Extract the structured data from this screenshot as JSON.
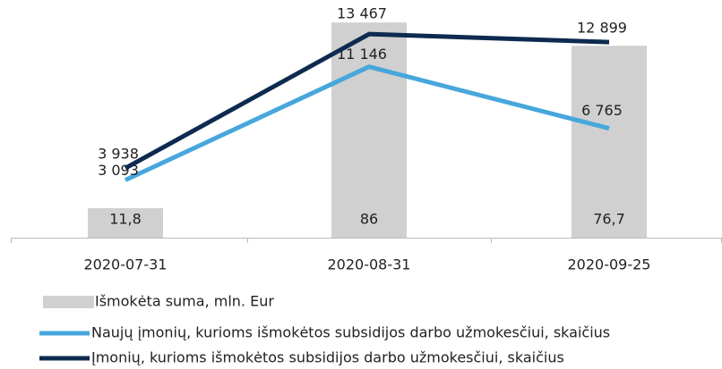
{
  "chart_data": {
    "type": "bar",
    "categories": [
      "2020-07-31",
      "2020-08-31",
      "2020-09-25"
    ],
    "ylim": [
      0,
      90
    ],
    "y2lim": [
      -1000,
      15000
    ],
    "series": [
      {
        "name": "Išmokėta suma, mln. Eur",
        "type": "bar",
        "color": "#d0d0d0",
        "values": [
          11.8,
          86,
          76.7
        ],
        "value_labels": [
          "11,8",
          "86",
          "76,7"
        ]
      },
      {
        "name": "Naujų įmonių, kurioms išmokėtos subsidijos darbo užmokesčiui, skaičius",
        "type": "line",
        "axis": "y2",
        "color": "#47a7dc",
        "values": [
          3093,
          11146,
          6765
        ],
        "value_labels": [
          "3 093",
          "11 146",
          "6 765"
        ]
      },
      {
        "name": "Įmonių, kurioms išmokėtos subsidijos darbo užmokesčiui, skaičius",
        "type": "line",
        "axis": "y2",
        "color": "#0d2a4f",
        "values": [
          3938,
          13467,
          12899
        ],
        "value_labels": [
          "3 938",
          "13 467",
          "12 899"
        ]
      }
    ]
  }
}
